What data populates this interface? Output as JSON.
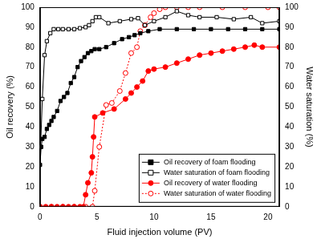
{
  "chart_data": {
    "type": "line",
    "x_label": "Fluid injection volume (PV)",
    "y_label": "Oil recovery (%)",
    "y2_label": "Water saturation (%)",
    "xlim": [
      0,
      21
    ],
    "xticks": [
      0,
      5,
      10,
      15,
      20
    ],
    "ylim": [
      0,
      100
    ],
    "yticks": [
      0,
      10,
      20,
      30,
      40,
      50,
      60,
      70,
      80,
      90,
      100
    ],
    "y2lim": [
      0,
      100
    ],
    "y2ticks": [
      0,
      10,
      20,
      30,
      40,
      50,
      60,
      70,
      80,
      90,
      100
    ],
    "grid": false,
    "legend": "lower right",
    "series": [
      {
        "name": "Oil recovery of foam flooding",
        "color": "#000000",
        "marker": "square",
        "line_style": "solid",
        "x": [
          0,
          0.1,
          0.2,
          0.4,
          0.6,
          0.8,
          1.0,
          1.2,
          1.5,
          1.8,
          2.1,
          2.4,
          2.7,
          3.0,
          3.3,
          3.6,
          3.9,
          4.2,
          4.5,
          4.8,
          5.2,
          5.8,
          6.5,
          7.2,
          7.8,
          8.3,
          8.8,
          9.5,
          10.5,
          12,
          13.5,
          15,
          16.5,
          18,
          19.5,
          21
        ],
        "values": [
          21,
          30,
          34,
          35,
          39,
          41,
          43,
          45,
          48,
          53,
          55,
          57,
          62,
          65,
          70,
          73,
          75,
          77,
          78,
          79,
          79,
          80,
          82,
          84,
          85,
          86,
          87,
          88,
          89,
          89,
          89,
          89,
          89,
          89,
          89,
          89
        ]
      },
      {
        "name": "Water saturation of foam flooding",
        "color": "#000000",
        "marker": "open-square",
        "line_style": "solid",
        "axis": "y2",
        "x": [
          0.05,
          0.2,
          0.4,
          0.6,
          0.9,
          1.2,
          1.6,
          2.0,
          2.5,
          3.0,
          3.5,
          4.0,
          4.3,
          4.6,
          4.9,
          5.2,
          6.0,
          7.0,
          8.0,
          8.6,
          9.2,
          10,
          11,
          12,
          13,
          14,
          15.5,
          17,
          18.5,
          19.5,
          21
        ],
        "values": [
          30,
          54,
          76,
          83,
          87,
          89,
          89,
          89,
          89,
          89,
          89.5,
          90,
          91,
          93,
          95,
          95,
          92,
          93,
          94,
          94.5,
          91,
          93,
          95,
          98,
          96,
          95,
          95,
          94,
          95,
          92,
          93
        ]
      },
      {
        "name": "Oil recovery of water flooding",
        "color": "#ff0000",
        "marker": "circle",
        "line_style": "solid",
        "x": [
          0,
          0.5,
          1.0,
          1.5,
          2.0,
          2.5,
          3.0,
          3.5,
          3.8,
          4.0,
          4.2,
          4.5,
          4.6,
          4.7,
          4.8,
          5.5,
          6.5,
          7.5,
          8,
          8.5,
          9,
          9.5,
          10,
          11,
          12,
          13,
          14,
          15,
          16,
          17,
          18,
          18.8,
          19.5,
          21
        ],
        "values": [
          0,
          0,
          0,
          0,
          0,
          0,
          0,
          0,
          0,
          6,
          12,
          17,
          25,
          35,
          45,
          47,
          49,
          54,
          57,
          60,
          63,
          68,
          69,
          70,
          72,
          74,
          76,
          77,
          78,
          79,
          80,
          81,
          80,
          80
        ]
      },
      {
        "name": "Water saturation of water flooding",
        "color": "#ff0000",
        "marker": "open-circle",
        "line_style": "dotted",
        "axis": "y2",
        "x": [
          0,
          1,
          2,
          3,
          4,
          4.6,
          4.8,
          5.2,
          5.8,
          6.3,
          7,
          7.5,
          8,
          8.5,
          8.8,
          9.2,
          9.7,
          10,
          10.5,
          11,
          12,
          13,
          14,
          16,
          18,
          20,
          21
        ],
        "values": [
          0,
          0,
          0,
          0,
          0,
          0,
          8,
          30,
          51,
          52,
          58,
          67,
          77,
          80,
          88,
          91,
          95,
          97,
          99,
          100,
          100,
          100,
          100,
          100,
          100,
          100,
          100
        ]
      }
    ]
  }
}
